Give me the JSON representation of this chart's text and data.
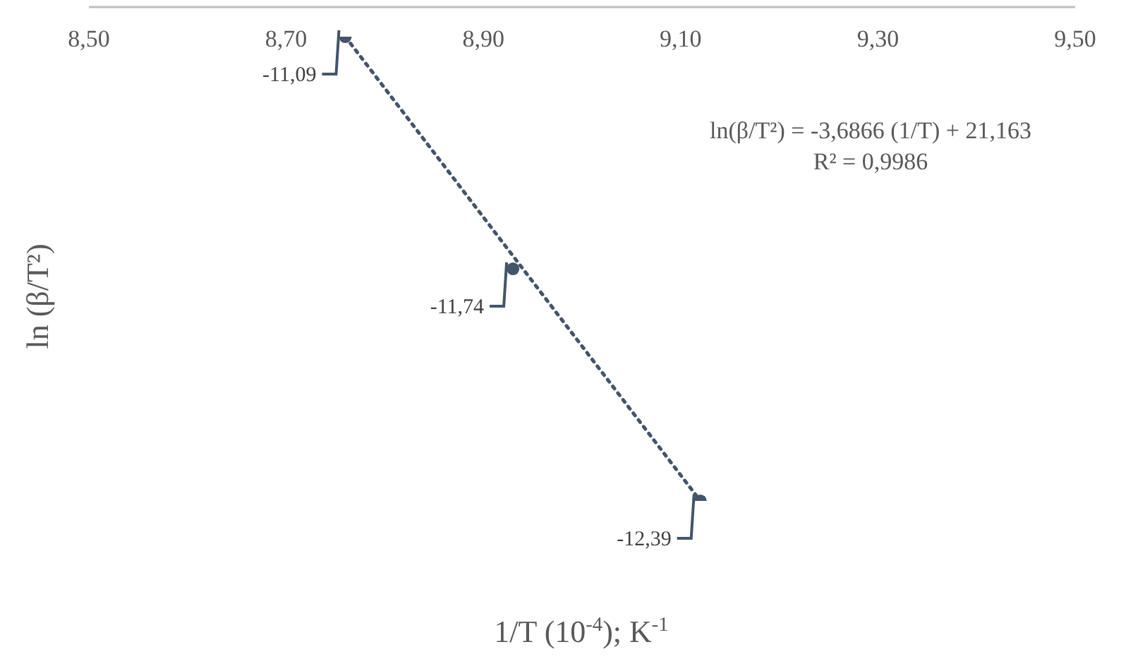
{
  "chart_data": {
    "type": "scatter",
    "xlabel": "1/T (10$^{-4}$); K$^{-1}$",
    "ylabel": "ln (β/T²)",
    "x": [
      8.76,
      8.93,
      9.12
    ],
    "series": [
      {
        "type": "scatter",
        "color": "#44546a",
        "values": [
          -11.09,
          -11.74,
          -12.39
        ],
        "value_labels": [
          "-11,09",
          "-11,74",
          "-12,39"
        ]
      },
      {
        "type": "line",
        "color": "#44546a",
        "line_style": "dotted",
        "marker": "none",
        "x": [
          8.76,
          9.12
        ],
        "values": [
          -11.09,
          -12.39
        ]
      }
    ],
    "annotations": [
      "ln(β/T²) = -3,6866 (1/T) + 21,163",
      "R² = 0,9986"
    ],
    "xlim": [
      8.5,
      9.5
    ],
    "xticks": [
      {
        "value": 8.5,
        "label": "8,50"
      },
      {
        "value": 8.7,
        "label": "8,70"
      },
      {
        "value": 8.9,
        "label": "8,90"
      },
      {
        "value": 9.1,
        "label": "9,10"
      },
      {
        "value": 9.3,
        "label": "9,30"
      },
      {
        "value": 9.5,
        "label": "9,50"
      }
    ],
    "grid": false,
    "legend": false,
    "tick_labels": "x",
    "marker": "circle"
  }
}
